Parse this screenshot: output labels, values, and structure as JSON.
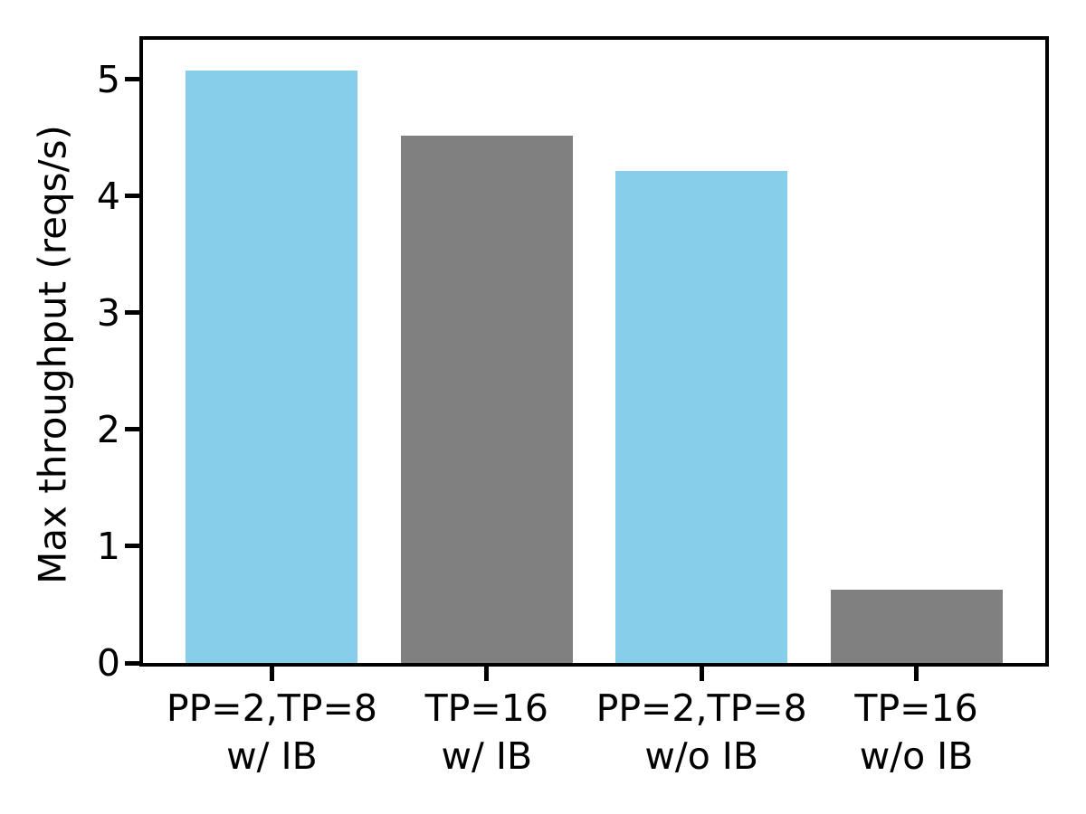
{
  "chart_data": {
    "type": "bar",
    "title": "",
    "xlabel": "",
    "ylabel": "Max throughput (reqs/s)",
    "categories": [
      [
        "PP=2,TP=8",
        "w/ IB"
      ],
      [
        "TP=16",
        "w/ IB"
      ],
      [
        "PP=2,TP=8",
        "w/o IB"
      ],
      [
        "TP=16",
        "w/o IB"
      ]
    ],
    "values": [
      5.08,
      4.52,
      4.22,
      0.63
    ],
    "bar_colors": [
      "#87ceeb",
      "#808080",
      "#87ceeb",
      "#808080"
    ],
    "yticks": [
      0,
      1,
      2,
      3,
      4,
      5
    ],
    "ylim": [
      0,
      5.34
    ],
    "xlim": [
      -0.6,
      3.6
    ],
    "bar_width_data_units": 0.8,
    "grid": false,
    "legend": "none",
    "colors": {
      "skyblue_bar": "#87ceeb",
      "gray_bar": "#808080",
      "axis": "#000000",
      "background": "#ffffff"
    }
  }
}
